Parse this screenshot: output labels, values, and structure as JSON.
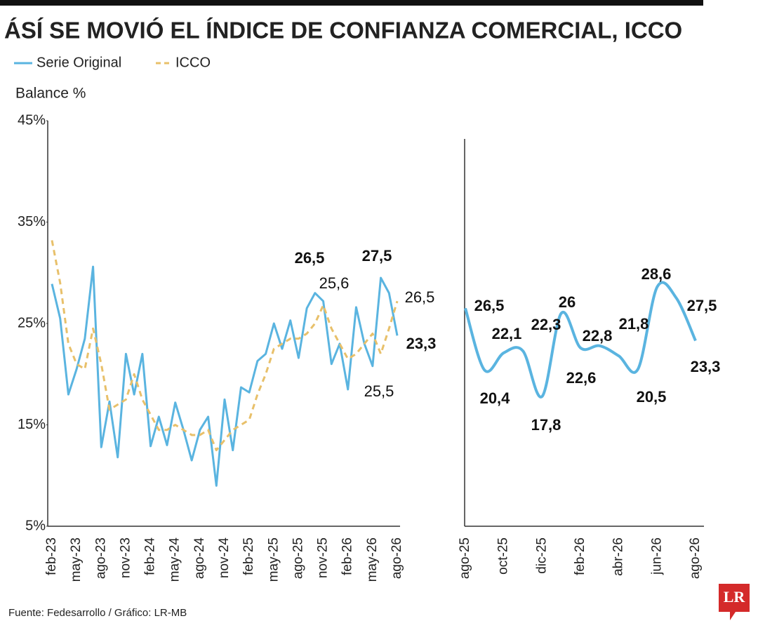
{
  "chart_data": [
    {
      "type": "line",
      "title": "ÁSÍ SE MOVIÓ EL ÍNDICE DE CONFIANZA COMERCIAL, ICCO",
      "ylabel": "Balance %",
      "categories": [
        "feb-23",
        null,
        null,
        "may-23",
        null,
        null,
        "ago-23",
        null,
        null,
        "nov-23",
        null,
        null,
        "feb-24",
        null,
        null,
        "may-24",
        null,
        null,
        "ago-24",
        null,
        null,
        "nov-24",
        null,
        null,
        "feb-25",
        null,
        null,
        "may-25",
        null,
        null,
        "ago-25",
        null,
        null,
        "nov-25",
        null,
        null,
        "feb-26",
        null,
        null,
        "may-26",
        null,
        null,
        "ago-26"
      ],
      "series": [
        {
          "name": "Serie Original",
          "color": "#5ab4e0",
          "dashed": false,
          "values": [
            28.9,
            25.5,
            18.0,
            20.5,
            23.5,
            30.6,
            12.8,
            17.3,
            11.8,
            22.0,
            18.0,
            22.0,
            12.9,
            15.8,
            13.0,
            17.2,
            14.5,
            11.5,
            14.5,
            15.8,
            9.0,
            17.5,
            12.5,
            18.7,
            18.2,
            21.3,
            22.0,
            25.0,
            22.5,
            25.3,
            21.6,
            26.5,
            28.0,
            27.2,
            21.0,
            23.0,
            18.5,
            26.6,
            23.0,
            20.8,
            29.5,
            28.0,
            23.8
          ]
        },
        {
          "name": "ICCO",
          "color": "#e8c06a",
          "dashed": true,
          "values": [
            33.2,
            29.0,
            23.0,
            21.0,
            20.5,
            24.5,
            21.0,
            16.5,
            17.0,
            17.5,
            20.0,
            17.5,
            16.0,
            14.5,
            14.5,
            15.0,
            14.5,
            14.0,
            14.0,
            14.5,
            12.5,
            13.5,
            14.5,
            15.0,
            15.5,
            18.0,
            20.0,
            22.5,
            23.0,
            23.5,
            23.5,
            24.0,
            25.0,
            26.8,
            24.5,
            23.0,
            21.5,
            22.0,
            23.0,
            24.0,
            22.0,
            24.5,
            27.2
          ]
        }
      ],
      "annotations": [
        {
          "text": "26,5",
          "bold": true
        },
        {
          "text": "25,6",
          "bold": false
        },
        {
          "text": "27,5",
          "bold": true
        },
        {
          "text": "26,5",
          "bold": false
        },
        {
          "text": "23,3",
          "bold": true
        },
        {
          "text": "25,5",
          "bold": false
        }
      ],
      "ylim": [
        5,
        45
      ],
      "yticks": [
        {
          "value": 5,
          "label": "5%"
        },
        {
          "value": 15,
          "label": "15%"
        },
        {
          "value": 25,
          "label": "25%"
        },
        {
          "value": 35,
          "label": "35%"
        },
        {
          "value": 45,
          "label": "45%"
        }
      ]
    },
    {
      "type": "line",
      "categories": [
        "ago-25",
        null,
        "oct-25",
        null,
        "dic-25",
        null,
        "feb-26",
        null,
        "abr-26",
        null,
        "jun-26",
        null,
        "ago-26"
      ],
      "series": [
        {
          "name": "Serie Original",
          "color": "#5ab4e0",
          "values": [
            26.5,
            20.4,
            22.1,
            22.3,
            17.8,
            26,
            22.6,
            22.8,
            21.8,
            20.5,
            28.6,
            27.5,
            23.3
          ],
          "value_labels": [
            "26,5",
            "20,4",
            "22,1",
            "22,3",
            "17,8",
            "26",
            "22,6",
            "22,8",
            "21,8",
            "20,5",
            "28,6",
            "27,5",
            "23,3"
          ]
        }
      ],
      "ylim": [
        5,
        45
      ]
    }
  ],
  "source": "Fuente: Fedesarrollo / Gráfico: LR-MB",
  "logo": "LR"
}
